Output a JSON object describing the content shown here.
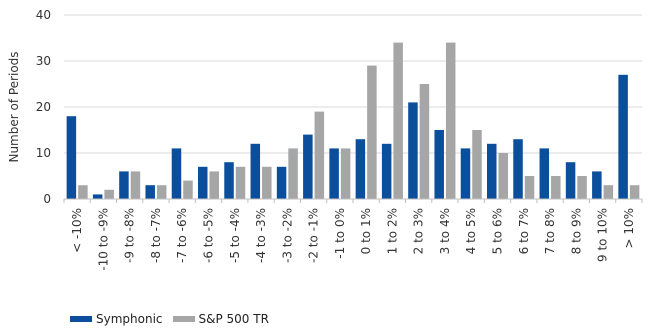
{
  "chart_data": {
    "type": "bar",
    "title": "",
    "xlabel": "",
    "ylabel": "Number of Periods",
    "ylim": [
      0,
      40
    ],
    "yticks": [
      0,
      10,
      20,
      30,
      40
    ],
    "grid": true,
    "legend_position": "bottom-left",
    "categories": [
      "< -10%",
      "-10 to -9%",
      "-9 to -8%",
      "-8 to -7%",
      "-7 to -6%",
      "-6 to -5%",
      "-5 to -4%",
      "-4 to -3%",
      "-3 to -2%",
      "-2 to -1%",
      "-1 to 0%",
      "0 to 1%",
      "1 to 2%",
      "2 to 3%",
      "3 to 4%",
      "4 to 5%",
      "5 to 6%",
      "6 to 7%",
      "7 to 8%",
      "8 to 9%",
      "9 to 10%",
      "> 10%"
    ],
    "series": [
      {
        "name": "Symphonic",
        "color": "#0B4F9C",
        "values": [
          18,
          1,
          6,
          3,
          11,
          7,
          8,
          12,
          7,
          14,
          11,
          13,
          12,
          21,
          15,
          11,
          12,
          13,
          11,
          8,
          6,
          27
        ]
      },
      {
        "name": "S&P 500 TR",
        "color": "#A6A6A6",
        "values": [
          3,
          2,
          6,
          3,
          4,
          6,
          7,
          7,
          11,
          19,
          11,
          29,
          34,
          25,
          34,
          15,
          10,
          5,
          5,
          5,
          3,
          3
        ]
      }
    ]
  }
}
